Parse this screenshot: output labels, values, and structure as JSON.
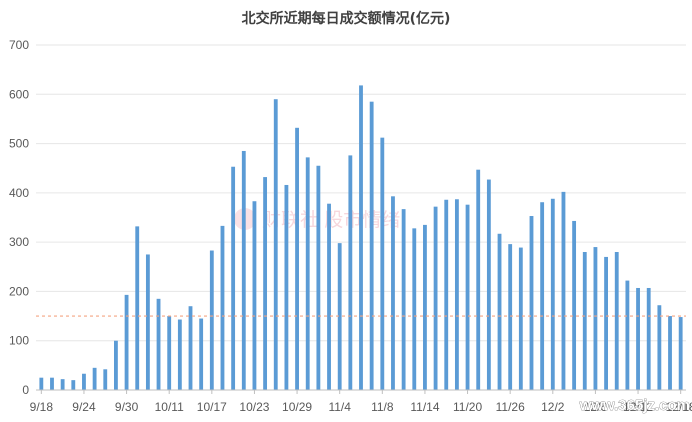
{
  "chart_data": {
    "type": "bar",
    "title": "北交所近期每日成交额情况(亿元)",
    "xlabel": "",
    "ylabel": "",
    "ylim": [
      0,
      700
    ],
    "yticks": [
      0,
      100,
      200,
      300,
      400,
      500,
      600,
      700
    ],
    "grid": true,
    "legend": "none",
    "bar_color": "#5b9bd5",
    "reference_line": {
      "value": 150,
      "color": "#f4a582",
      "style": "dashed"
    },
    "tick_labels": [
      "9/18",
      "9/24",
      "9/30",
      "10/11",
      "10/17",
      "10/23",
      "10/29",
      "11/4",
      "11/8",
      "11/14",
      "11/20",
      "11/26",
      "12/2",
      "12/6",
      "12/12",
      "12/18"
    ],
    "tick_every": 4,
    "watermark": "财联社 股市情绪",
    "site_text": "www.365jz.com",
    "values": [
      25,
      25,
      22,
      20,
      33,
      45,
      42,
      100,
      193,
      332,
      275,
      185,
      150,
      143,
      170,
      145,
      283,
      333,
      453,
      485,
      383,
      432,
      590,
      416,
      532,
      472,
      455,
      378,
      298,
      476,
      618,
      585,
      512,
      393,
      367,
      328,
      335,
      372,
      386,
      387,
      376,
      447,
      427,
      317,
      296,
      289,
      353,
      381,
      388,
      402,
      343,
      280,
      290,
      270,
      280,
      222,
      207,
      207,
      172,
      150,
      148
    ]
  }
}
